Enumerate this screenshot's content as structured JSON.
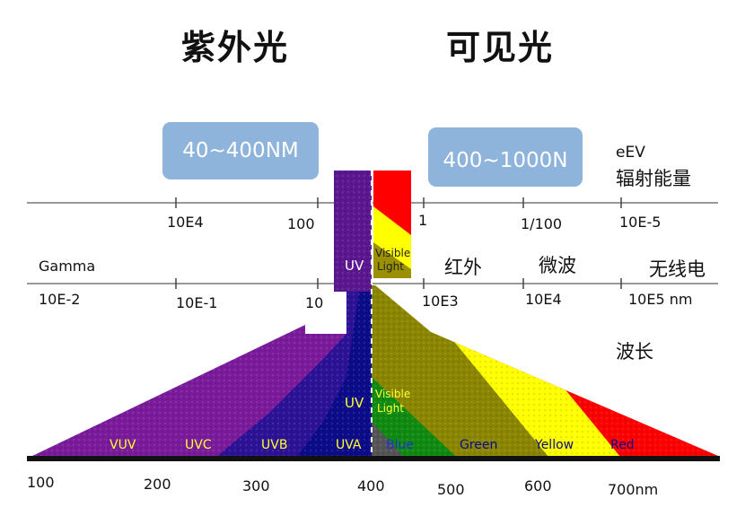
{
  "titles": {
    "uv": "紫外光",
    "visible": "可见光"
  },
  "range_boxes": {
    "uv": "40~400NM",
    "visible": "400~1000N"
  },
  "energy_scale": {
    "unit_line1": "eEV",
    "unit_line2": "辐射能量",
    "ticks": [
      "10E4",
      "100",
      "1",
      "1/100",
      "10E-5"
    ]
  },
  "bands": {
    "gamma": "Gamma",
    "uv": "UV",
    "visible_line1": "Visible",
    "visible_line2": "Light",
    "infrared": "红外",
    "microwave": "微波",
    "radio": "无线电"
  },
  "wavelength_scale": {
    "ticks": [
      "10E-2",
      "10E-1",
      "10",
      "10E3",
      "10E4",
      "10E5 nm"
    ],
    "label": "波长"
  },
  "spectrum_labels": [
    "VUV",
    "UVC",
    "UVB",
    "UVA",
    "Blue",
    "Green",
    "Yellow",
    "Red"
  ],
  "spectrum_band_labels": {
    "uv": "UV",
    "visible_line1": "Visible",
    "visible_line2": "Light"
  },
  "nm_axis": [
    "100",
    "200",
    "300",
    "400",
    "500",
    "600",
    "700nm"
  ],
  "colors": {
    "vuv_purple": "#7a1b9b",
    "uv_navy": "#0c0c8a",
    "olive": "#8b8600",
    "yellow": "#ffff00",
    "red": "#ff0000",
    "green": "#118a11",
    "box_blue": "#8fb4dc"
  }
}
